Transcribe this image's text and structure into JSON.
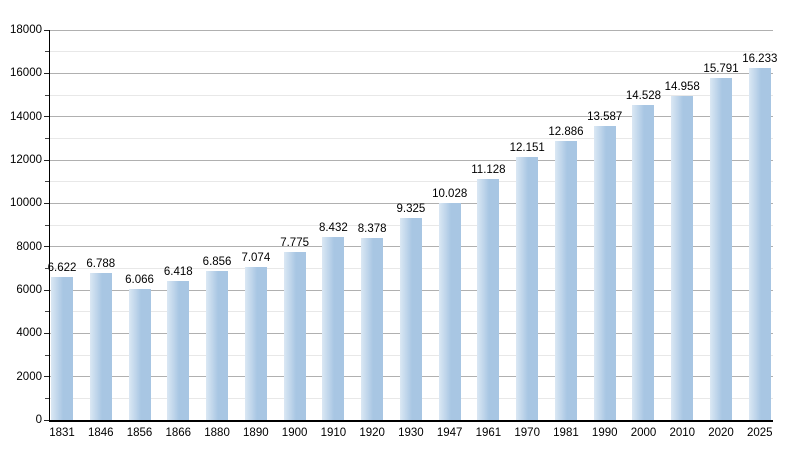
{
  "chart_data": {
    "type": "bar",
    "title": "",
    "xlabel": "",
    "ylabel": "",
    "categories": [
      "1831",
      "1846",
      "1856",
      "1866",
      "1880",
      "1890",
      "1900",
      "1910",
      "1920",
      "1930",
      "1947",
      "1961",
      "1970",
      "1981",
      "1990",
      "2000",
      "2010",
      "2020",
      "2025"
    ],
    "values": [
      6622,
      6788,
      6066,
      6418,
      6856,
      7074,
      7775,
      8432,
      8378,
      9325,
      10028,
      11128,
      12151,
      12886,
      13587,
      14528,
      14958,
      15791,
      16233
    ],
    "value_labels": [
      "6.622",
      "6.788",
      "6.066",
      "6.418",
      "6.856",
      "7.074",
      "7.775",
      "8.432",
      "8.378",
      "9.325",
      "10.028",
      "11.128",
      "12.151",
      "12.886",
      "13.587",
      "14.528",
      "14.958",
      "15.791",
      "16.233"
    ],
    "ylim": [
      0,
      18000
    ],
    "y_tick_labels": [
      "0",
      "2000",
      "4000",
      "6000",
      "8000",
      "10000",
      "12000",
      "14000",
      "16000",
      "18000"
    ],
    "y_major_step": 2000,
    "y_minor_step": 1000,
    "grid": "horizontal, major and minor lines",
    "legend": "none",
    "colors": {
      "bar_fill": "#a8c6e3",
      "bar_highlight": "#dbe8f4",
      "gridline_major": "#b0b0b0",
      "gridline_minor": "#e8e8e8",
      "axis": "#000000",
      "text": "#000000",
      "background": "#ffffff"
    }
  }
}
